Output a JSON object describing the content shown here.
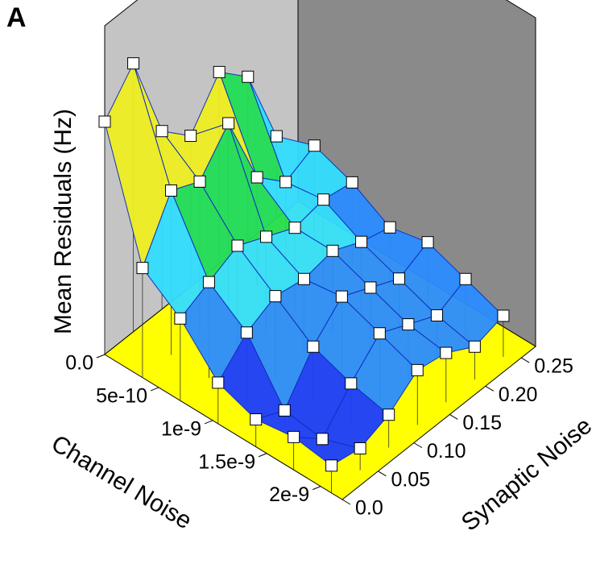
{
  "chart_data": {
    "type": "surface3d",
    "panel_label": "A",
    "x_label": "Channel Noise",
    "y_label": "Synaptic Noise",
    "z_label": "Mean Residuals (Hz)",
    "x": [
      0,
      3.5e-10,
      7e-10,
      1.05e-09,
      1.4e-09,
      1.75e-09,
      2.1e-09
    ],
    "y": [
      0,
      0.04,
      0.08,
      0.12,
      0.16,
      0.2,
      0.24
    ],
    "z": [
      [
        8.5,
        9.8,
        6.5,
        5.5,
        7,
        6,
        3
      ],
      [
        4,
        6,
        5.5,
        6.8,
        4,
        3,
        3.5
      ],
      [
        3,
        3.5,
        4,
        3.5,
        3,
        3.2,
        3
      ],
      [
        1.5,
        2.5,
        3,
        2.8,
        3,
        2.5,
        2.2
      ],
      [
        1,
        0.5,
        2,
        3,
        2.5,
        2,
        2.5
      ],
      [
        1.2,
        0.3,
        1.5,
        2.5,
        2,
        1.5,
        2
      ],
      [
        1,
        0.8,
        1.2,
        2,
        1.8,
        1.2,
        1.5
      ]
    ],
    "xlim": [
      0,
      2.2e-09
    ],
    "ylim": [
      0,
      0.27
    ],
    "zlim": [
      0,
      10
    ],
    "xticks": [
      {
        "value": 0,
        "label": "0.0"
      },
      5e-10,
      1e-09,
      1.5e-09,
      2e-09
    ],
    "yticks": [
      {
        "value": 0,
        "label": "0.0"
      },
      0.05,
      {
        "value": 0.1,
        "label": "0.10"
      },
      0.15,
      {
        "value": 0.2,
        "label": "0.20"
      },
      0.25
    ],
    "colormap": [
      "#1a3cff",
      "#2a8cff",
      "#33ddff",
      "#22dd55",
      "#eeee22",
      "#ff8822",
      "#ee1111"
    ],
    "wall_colors": [
      "#c4c4c4",
      "#8a8a8a"
    ],
    "floor_color": "#ffff00"
  }
}
